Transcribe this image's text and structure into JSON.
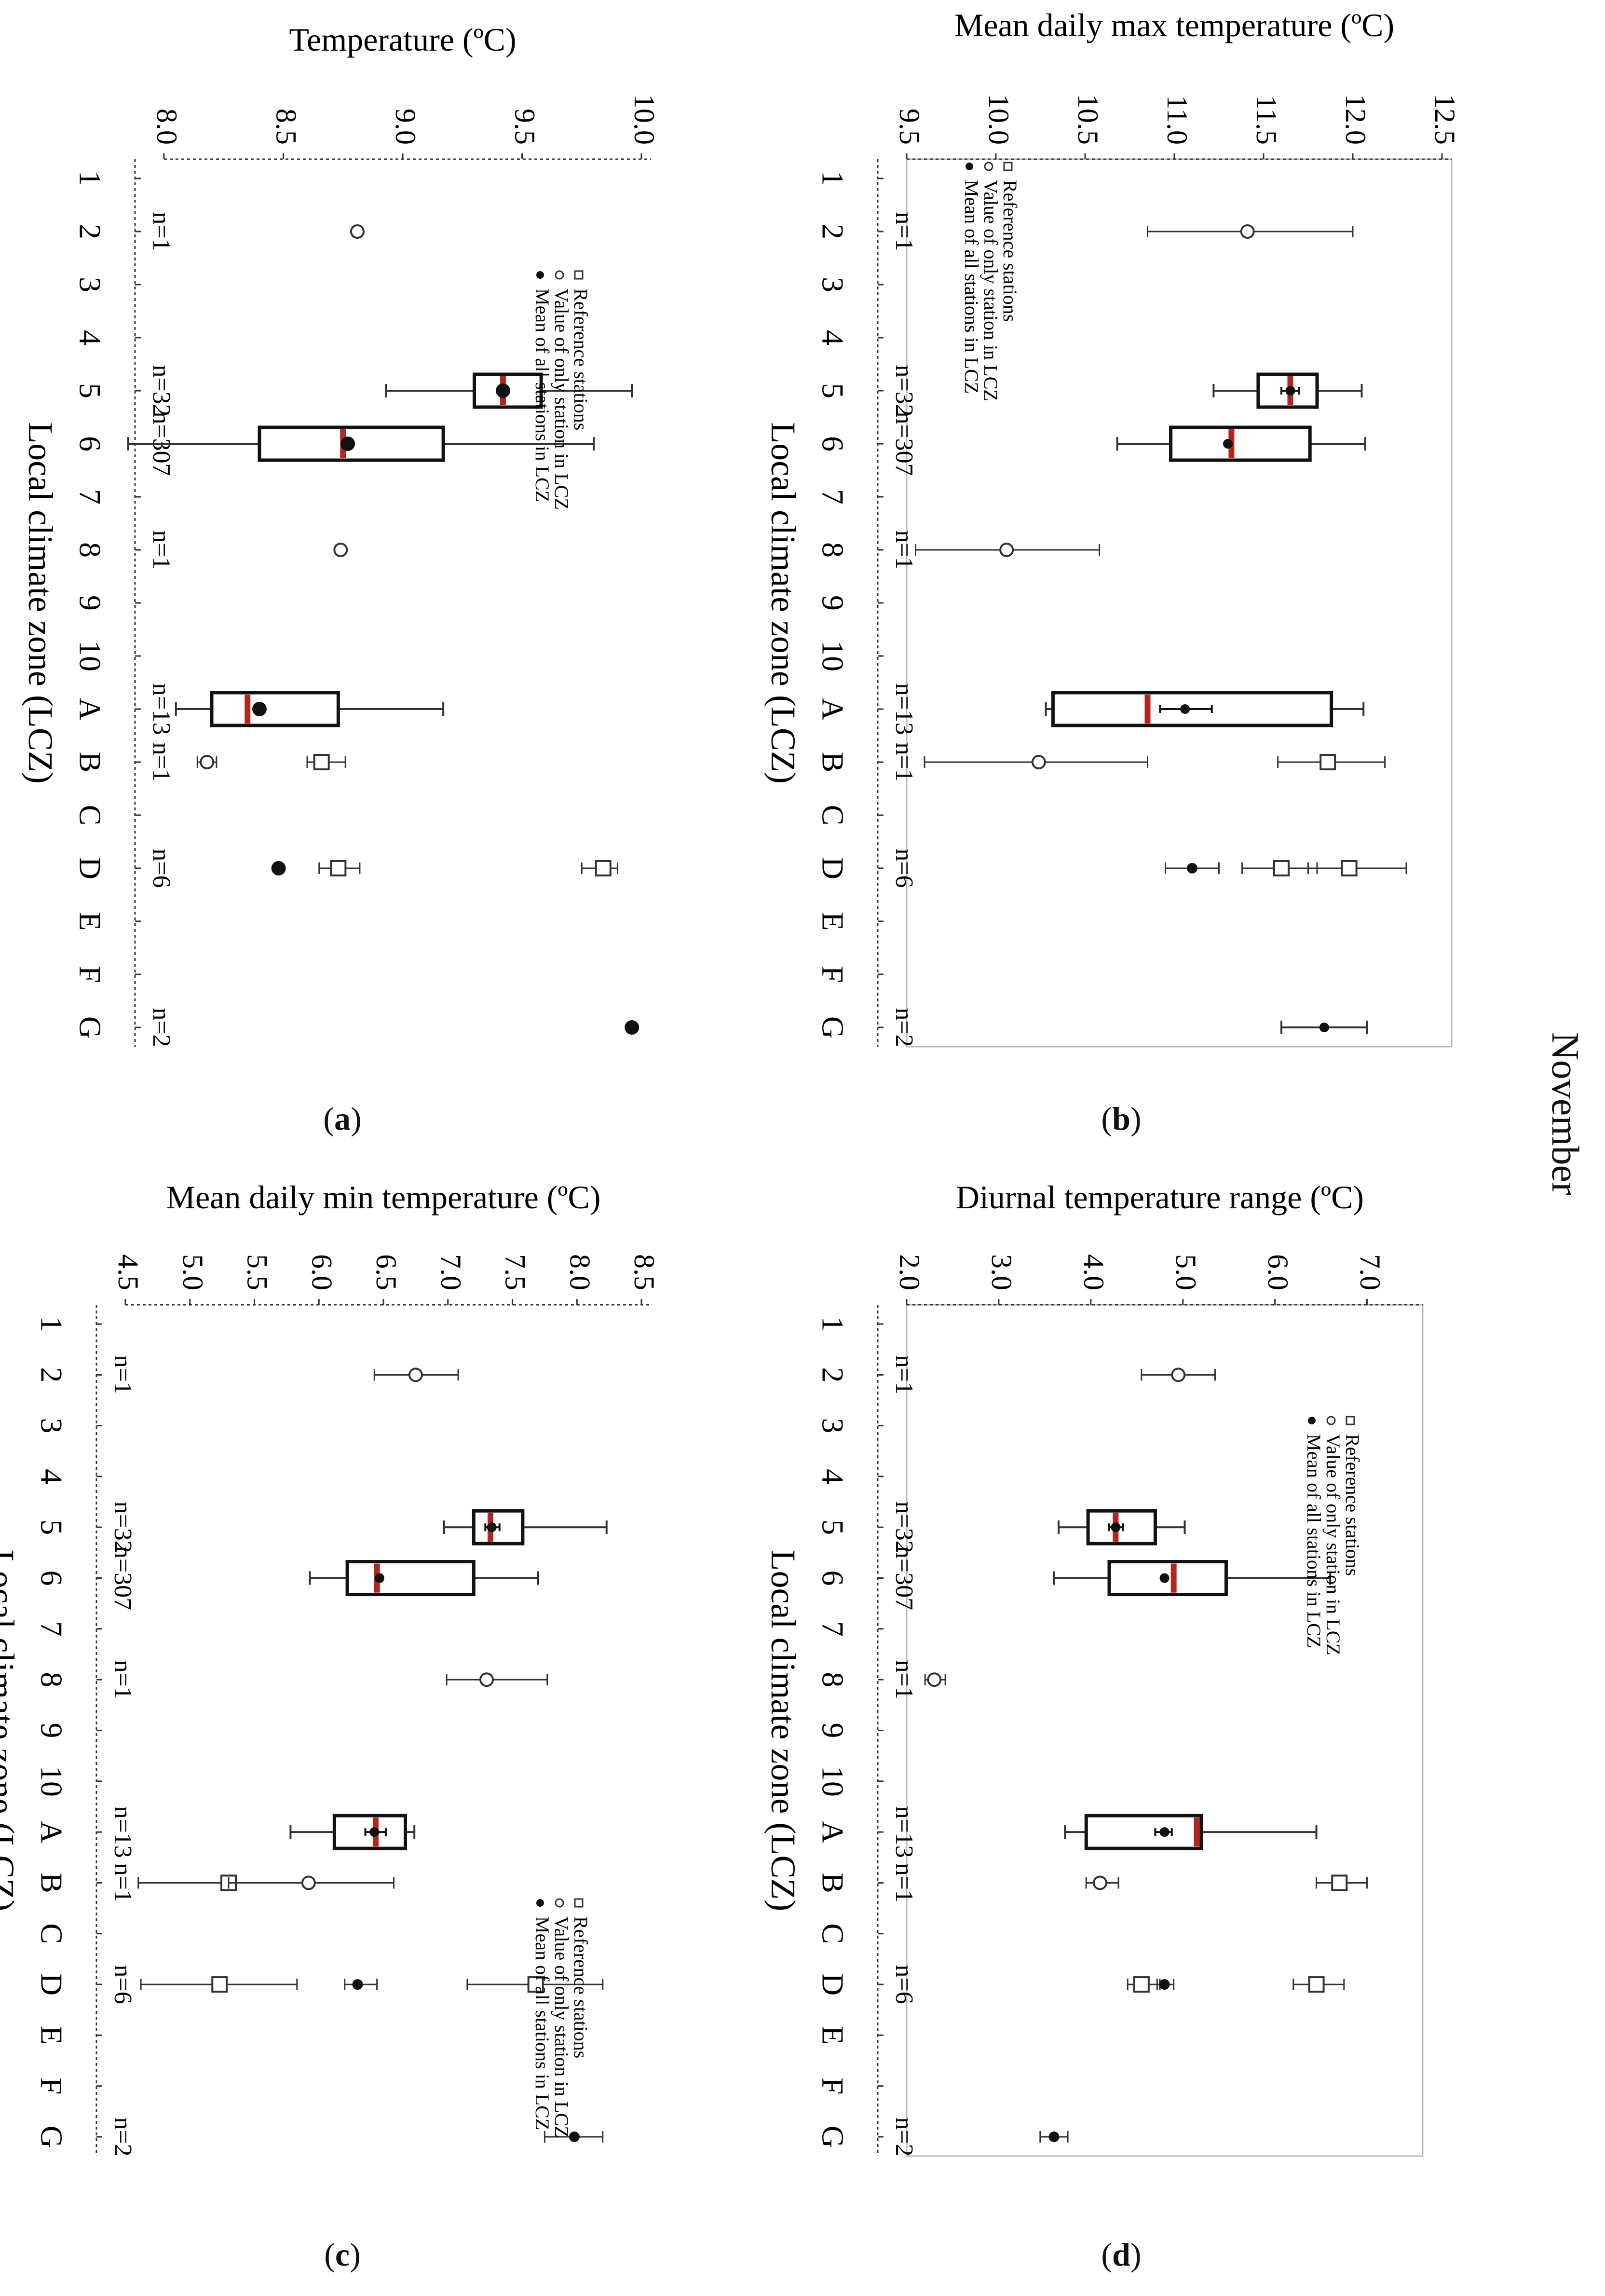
{
  "figure": {
    "month_label": "November",
    "lcz_categories": [
      "1",
      "2",
      "3",
      "4",
      "5",
      "6",
      "7",
      "8",
      "9",
      "10",
      "A",
      "B",
      "C",
      "D",
      "E",
      "F",
      "G"
    ],
    "legend": {
      "mean": "Mean of all stations in LCZ",
      "single": "Value of only station in LCZ",
      "reference": "Reference stations"
    },
    "panel_tags": [
      {
        "open": "(",
        "letter": "a",
        "close": ")"
      },
      {
        "open": "(",
        "letter": "b",
        "close": ")"
      },
      {
        "open": "(",
        "letter": "c",
        "close": ")"
      },
      {
        "open": "(",
        "letter": "d",
        "close": ")"
      }
    ]
  },
  "chart_data": [
    {
      "panel": "a",
      "type": "box",
      "title": "",
      "ylabel": "Temperature (ºC)",
      "xlabel": "Local climate zone (LCZ)",
      "ylim": [
        8.0,
        10.0
      ],
      "yticks": [
        "8.0",
        "8.5",
        "9.0",
        "9.5",
        "10.0"
      ],
      "ytick_values": [
        8.0,
        8.5,
        9.0,
        9.5,
        10.0
      ],
      "counts": [
        {
          "lcz": "2",
          "text": "n=1"
        },
        {
          "lcz": "5",
          "text": "n=32"
        },
        {
          "lcz": "6",
          "text": "n=307"
        },
        {
          "lcz": "8",
          "text": "n=1"
        },
        {
          "lcz": "A",
          "text": "n=13"
        },
        {
          "lcz": "B",
          "text": "n=1"
        },
        {
          "lcz": "D",
          "text": "n=6"
        },
        {
          "lcz": "G",
          "text": "n=2"
        }
      ],
      "boxes": [
        {
          "lcz": "5",
          "whisker_low": 8.93,
          "q1": 9.3,
          "median": 9.42,
          "q3": 9.58,
          "whisker_high": 9.96,
          "mean": 9.42
        },
        {
          "lcz": "6",
          "whisker_low": 7.85,
          "q1": 8.4,
          "median": 8.75,
          "q3": 9.17,
          "whisker_high": 9.8,
          "mean": 8.77
        },
        {
          "lcz": "A",
          "whisker_low": 8.05,
          "q1": 8.2,
          "median": 8.35,
          "q3": 8.73,
          "whisker_high": 9.17,
          "mean": 8.4
        }
      ],
      "markers": [
        {
          "lcz": "2",
          "kind": "single",
          "value": 8.81
        },
        {
          "lcz": "8",
          "kind": "single",
          "value": 8.74
        },
        {
          "lcz": "B",
          "kind": "single",
          "value": 8.18,
          "err": [
            8.14,
            8.22
          ]
        },
        {
          "lcz": "B",
          "kind": "reference",
          "value": 8.66,
          "err": [
            8.6,
            8.76
          ]
        },
        {
          "lcz": "D",
          "kind": "reference",
          "value": 8.73,
          "err": [
            8.65,
            8.82
          ]
        },
        {
          "lcz": "D",
          "kind": "reference",
          "value": 9.84,
          "err": [
            9.75,
            9.9
          ]
        },
        {
          "lcz": "D",
          "kind": "mean",
          "value": 8.48
        },
        {
          "lcz": "G",
          "kind": "mean",
          "value": 9.96
        }
      ],
      "legend_position": "right-middle"
    },
    {
      "panel": "b",
      "type": "box",
      "title": "",
      "ylabel": "Mean daily max temperature (ºC)",
      "xlabel": "Local climate zone (LCZ)",
      "ylim": [
        9.5,
        12.5
      ],
      "yticks": [
        "9.5",
        "10.0",
        "10.5",
        "11.0",
        "11.5",
        "12.0",
        "12.5"
      ],
      "ytick_values": [
        9.5,
        10.0,
        10.5,
        11.0,
        11.5,
        12.0,
        12.5
      ],
      "counts": [
        {
          "lcz": "2",
          "text": "n=1"
        },
        {
          "lcz": "5",
          "text": "n=32"
        },
        {
          "lcz": "6",
          "text": "n=307"
        },
        {
          "lcz": "8",
          "text": "n=1"
        },
        {
          "lcz": "A",
          "text": "n=13"
        },
        {
          "lcz": "B",
          "text": "n=1"
        },
        {
          "lcz": "D",
          "text": "n=6"
        },
        {
          "lcz": "G",
          "text": "n=2"
        }
      ],
      "boxes": [
        {
          "lcz": "5",
          "whisker_low": 11.22,
          "q1": 11.47,
          "median": 11.65,
          "q3": 11.8,
          "whisker_high": 12.05,
          "mean": 11.65,
          "mean_err": [
            11.6,
            11.7
          ]
        },
        {
          "lcz": "6",
          "whisker_low": 10.68,
          "q1": 10.98,
          "median": 11.32,
          "q3": 11.76,
          "whisker_high": 12.07,
          "mean": 11.3
        },
        {
          "lcz": "A",
          "whisker_low": 10.28,
          "q1": 10.32,
          "median": 10.85,
          "q3": 11.88,
          "whisker_high": 12.06,
          "mean": 11.06,
          "mean_err": [
            10.92,
            11.21
          ]
        },
        {
          "lcz": "G",
          "whisker_low": 11.6,
          "q1": 11.84,
          "median": 11.84,
          "q3": 11.84,
          "whisker_high": 12.08,
          "mean": 11.84,
          "whisker_only": true
        }
      ],
      "markers": [
        {
          "lcz": "2",
          "kind": "single",
          "value": 11.41,
          "err": [
            10.85,
            12.0
          ]
        },
        {
          "lcz": "8",
          "kind": "single",
          "value": 10.06,
          "err": [
            9.55,
            10.58
          ]
        },
        {
          "lcz": "B",
          "kind": "single",
          "value": 10.24,
          "err": [
            9.6,
            10.85
          ]
        },
        {
          "lcz": "B",
          "kind": "reference",
          "value": 11.86,
          "err": [
            11.58,
            12.18
          ]
        },
        {
          "lcz": "D",
          "kind": "reference",
          "value": 11.6,
          "err": [
            11.38,
            11.8
          ]
        },
        {
          "lcz": "D",
          "kind": "reference",
          "value": 11.98,
          "err": [
            11.75,
            12.3
          ]
        },
        {
          "lcz": "D",
          "kind": "mean",
          "value": 11.1,
          "err": [
            10.95,
            11.25
          ]
        }
      ],
      "legend_position": "top-left"
    },
    {
      "panel": "c",
      "type": "box",
      "title": "",
      "ylabel": "Mean daily min temperature (ºC)",
      "xlabel": "Local climate zone (LCZ)",
      "ylim": [
        4.5,
        8.5
      ],
      "yticks": [
        "4.5",
        "5.0",
        "5.5",
        "6.0",
        "6.5",
        "7.0",
        "7.5",
        "8.0",
        "8.5"
      ],
      "ytick_values": [
        4.5,
        5.0,
        5.5,
        6.0,
        6.5,
        7.0,
        7.5,
        8.0,
        8.5
      ],
      "counts": [
        {
          "lcz": "2",
          "text": "n=1"
        },
        {
          "lcz": "5",
          "text": "n=32"
        },
        {
          "lcz": "6",
          "text": "n=307"
        },
        {
          "lcz": "8",
          "text": "n=1"
        },
        {
          "lcz": "A",
          "text": "n=13"
        },
        {
          "lcz": "B",
          "text": "n=1"
        },
        {
          "lcz": "D",
          "text": "n=6"
        },
        {
          "lcz": "G",
          "text": "n=2"
        }
      ],
      "boxes": [
        {
          "lcz": "5",
          "whisker_low": 6.97,
          "q1": 7.2,
          "median": 7.33,
          "q3": 7.58,
          "whisker_high": 8.23,
          "mean": 7.34,
          "mean_err": [
            7.29,
            7.4
          ]
        },
        {
          "lcz": "6",
          "whisker_low": 5.93,
          "q1": 6.22,
          "median": 6.45,
          "q3": 7.2,
          "whisker_high": 7.7,
          "mean": 6.47
        },
        {
          "lcz": "A",
          "whisker_low": 5.78,
          "q1": 6.12,
          "median": 6.44,
          "q3": 6.67,
          "whisker_high": 6.74,
          "mean": 6.43,
          "mean_err": [
            6.36,
            6.52
          ]
        }
      ],
      "markers": [
        {
          "lcz": "2",
          "kind": "single",
          "value": 6.75,
          "err": [
            6.43,
            7.08
          ]
        },
        {
          "lcz": "8",
          "kind": "single",
          "value": 7.3,
          "err": [
            6.99,
            7.77
          ]
        },
        {
          "lcz": "B",
          "kind": "reference",
          "value": 5.3,
          "err": [
            4.6,
            5.95
          ]
        },
        {
          "lcz": "B",
          "kind": "single",
          "value": 5.92,
          "err": [
            5.3,
            6.58
          ]
        },
        {
          "lcz": "D",
          "kind": "reference",
          "value": 5.23,
          "err": [
            4.62,
            5.83
          ]
        },
        {
          "lcz": "D",
          "kind": "reference",
          "value": 7.68,
          "err": [
            7.15,
            8.2
          ]
        },
        {
          "lcz": "D",
          "kind": "mean",
          "value": 6.3,
          "err": [
            6.2,
            6.45
          ]
        },
        {
          "lcz": "G",
          "kind": "mean",
          "value": 7.98,
          "err": [
            7.75,
            8.2
          ]
        }
      ],
      "legend_position": "right-middle"
    },
    {
      "panel": "d",
      "type": "box",
      "title": "",
      "ylabel": "Diurnal temperature range (ºC)",
      "xlabel": "Local climate zone (LCZ)",
      "ylim": [
        2.0,
        7.5
      ],
      "yticks": [
        "2.0",
        "3.0",
        "4.0",
        "5.0",
        "6.0",
        "7.0"
      ],
      "ytick_values": [
        2.0,
        3.0,
        4.0,
        5.0,
        6.0,
        7.0
      ],
      "counts": [
        {
          "lcz": "2",
          "text": "n=1"
        },
        {
          "lcz": "5",
          "text": "n=32"
        },
        {
          "lcz": "6",
          "text": "n=307"
        },
        {
          "lcz": "8",
          "text": "n=1"
        },
        {
          "lcz": "A",
          "text": "n=13"
        },
        {
          "lcz": "B",
          "text": "n=1"
        },
        {
          "lcz": "D",
          "text": "n=6"
        },
        {
          "lcz": "G",
          "text": "n=2"
        }
      ],
      "boxes": [
        {
          "lcz": "5",
          "whisker_low": 3.65,
          "q1": 3.97,
          "median": 4.27,
          "q3": 4.7,
          "whisker_high": 5.02,
          "mean": 4.27,
          "mean_err": [
            4.2,
            4.35
          ]
        },
        {
          "lcz": "6",
          "whisker_low": 3.6,
          "q1": 4.2,
          "median": 4.9,
          "q3": 5.47,
          "whisker_high": 6.6,
          "mean": 4.8
        },
        {
          "lcz": "A",
          "whisker_low": 3.72,
          "q1": 3.95,
          "median": 5.15,
          "q3": 5.2,
          "whisker_high": 6.45,
          "mean": 4.8,
          "mean_err": [
            4.7,
            4.88
          ]
        }
      ],
      "markers": [
        {
          "lcz": "2",
          "kind": "single",
          "value": 4.95,
          "err": [
            4.55,
            5.35
          ]
        },
        {
          "lcz": "8",
          "kind": "single",
          "value": 2.3,
          "err": [
            2.2,
            2.42
          ]
        },
        {
          "lcz": "B",
          "kind": "single",
          "value": 4.1,
          "err": [
            3.95,
            4.3
          ]
        },
        {
          "lcz": "B",
          "kind": "reference",
          "value": 6.7,
          "err": [
            6.45,
            7.0
          ]
        },
        {
          "lcz": "D",
          "kind": "reference",
          "value": 4.55,
          "err": [
            4.4,
            4.75
          ]
        },
        {
          "lcz": "D",
          "kind": "reference",
          "value": 6.45,
          "err": [
            6.2,
            6.75
          ]
        },
        {
          "lcz": "D",
          "kind": "mean",
          "value": 4.8,
          "err": [
            4.72,
            4.9
          ]
        },
        {
          "lcz": "G",
          "kind": "mean",
          "value": 3.6,
          "err": [
            3.45,
            3.75
          ]
        }
      ],
      "legend_position": "right-middle"
    }
  ]
}
